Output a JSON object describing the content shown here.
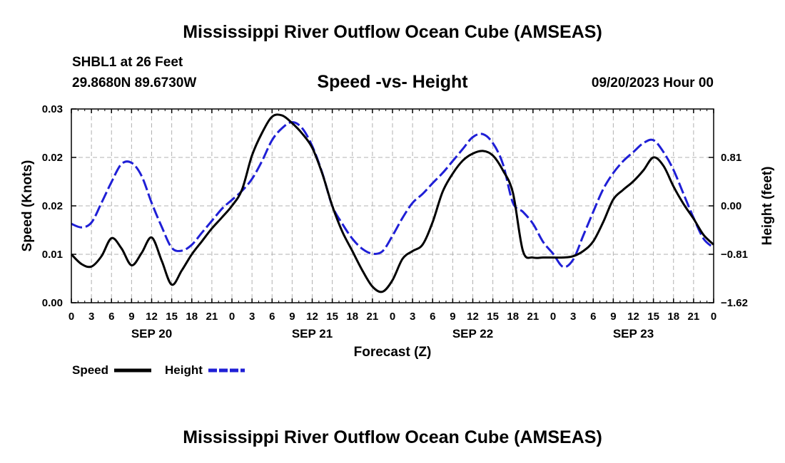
{
  "header": {
    "title": "Mississippi River Outflow Ocean Cube (AMSEAS)",
    "station": "SHBL1 at 26 Feet",
    "coordinates": "29.8680N  89.6730W",
    "subtitle": "Speed -vs- Height",
    "datetime": "09/20/2023 Hour 00"
  },
  "footer": {
    "title": "Mississippi River Outflow Ocean Cube (AMSEAS)"
  },
  "chart_data": {
    "type": "line",
    "xlabel": "Forecast (Z)",
    "ylabel_left": "Speed (Knots)",
    "ylabel_right": "Height (feet)",
    "x_range_hours": [
      0,
      96
    ],
    "x_tick_labels": [
      "0",
      "3",
      "6",
      "9",
      "12",
      "15",
      "18",
      "21",
      "0",
      "3",
      "6",
      "9",
      "12",
      "15",
      "18",
      "21",
      "0",
      "3",
      "6",
      "9",
      "12",
      "15",
      "18",
      "21",
      "0",
      "3",
      "6",
      "9",
      "12",
      "15",
      "18",
      "21",
      "0"
    ],
    "day_labels": [
      {
        "hour": 12,
        "label": "SEP 20"
      },
      {
        "hour": 36,
        "label": "SEP 21"
      },
      {
        "hour": 60,
        "label": "SEP 22"
      },
      {
        "hour": 84,
        "label": "SEP 23"
      }
    ],
    "y_left": {
      "range": [
        0,
        0.03
      ],
      "ticks": [
        0,
        0.0075,
        0.015,
        0.0225,
        0.03
      ],
      "tick_labels": [
        "0.00",
        "0.01",
        "0.02",
        "0.02",
        "0.03"
      ]
    },
    "y_right": {
      "range": [
        -1.62,
        1.62
      ],
      "ticks": [
        -1.62,
        -0.81,
        0.0,
        0.81
      ],
      "tick_labels": [
        "−1.62",
        "−0.81",
        "0.00",
        "0.81"
      ]
    },
    "grid": true,
    "legend_position": "bottom-left",
    "series": [
      {
        "name": "Speed",
        "axis": "left",
        "color": "#000000",
        "style": "solid",
        "x": [
          0,
          1.5,
          3,
          4.5,
          6,
          7.5,
          9,
          10.5,
          12,
          13.5,
          15,
          16.5,
          18,
          19.5,
          21,
          22.5,
          24,
          25.5,
          27,
          28.5,
          30,
          31.5,
          33,
          34.5,
          36,
          37.5,
          39,
          40.5,
          42,
          43.5,
          45,
          46.5,
          48,
          49.5,
          51,
          52.5,
          54,
          55.5,
          57,
          58.5,
          60,
          61.5,
          63,
          64.5,
          66,
          67.5,
          69,
          70.5,
          72,
          73.5,
          75,
          76.5,
          78,
          79.5,
          81,
          82.5,
          84,
          85.5,
          87,
          88.5,
          90,
          91.5,
          93,
          94.5,
          96
        ],
        "values": [
          0.0075,
          0.006,
          0.0056,
          0.0072,
          0.01,
          0.0084,
          0.0058,
          0.0077,
          0.0101,
          0.0065,
          0.0028,
          0.005,
          0.0075,
          0.0095,
          0.0115,
          0.0132,
          0.015,
          0.0175,
          0.0228,
          0.0263,
          0.0288,
          0.029,
          0.0278,
          0.0262,
          0.024,
          0.02,
          0.015,
          0.011,
          0.008,
          0.005,
          0.0025,
          0.0017,
          0.0035,
          0.0068,
          0.008,
          0.009,
          0.0125,
          0.0172,
          0.02,
          0.022,
          0.0231,
          0.0235,
          0.0228,
          0.0205,
          0.017,
          0.008,
          0.007,
          0.007,
          0.007,
          0.007,
          0.0072,
          0.008,
          0.0095,
          0.0125,
          0.016,
          0.0175,
          0.0188,
          0.0205,
          0.0225,
          0.0212,
          0.018,
          0.0153,
          0.013,
          0.0105,
          0.009
        ]
      },
      {
        "name": "Height",
        "axis": "right",
        "color": "#1f1fd6",
        "style": "dashed",
        "x": [
          0,
          1.5,
          3,
          4.5,
          6,
          7.5,
          9,
          10.5,
          12,
          13.5,
          15,
          16.5,
          18,
          19.5,
          21,
          22.5,
          24,
          25.5,
          27,
          28.5,
          30,
          31.5,
          33,
          34.5,
          36,
          37.5,
          39,
          40.5,
          42,
          43.5,
          45,
          46.5,
          48,
          49.5,
          51,
          52.5,
          54,
          55.5,
          57,
          58.5,
          60,
          61.5,
          63,
          64.5,
          66,
          67.5,
          69,
          70.5,
          72,
          73.5,
          75,
          76.5,
          78,
          79.5,
          81,
          82.5,
          84,
          85.5,
          87,
          88.5,
          90,
          91.5,
          93,
          94.5,
          96
        ],
        "values": [
          -0.3,
          -0.36,
          -0.28,
          0.05,
          0.4,
          0.7,
          0.72,
          0.5,
          0.05,
          -0.35,
          -0.7,
          -0.75,
          -0.65,
          -0.45,
          -0.25,
          -0.05,
          0.1,
          0.25,
          0.45,
          0.75,
          1.1,
          1.3,
          1.4,
          1.3,
          1.0,
          0.55,
          0.0,
          -0.3,
          -0.55,
          -0.72,
          -0.8,
          -0.76,
          -0.5,
          -0.2,
          0.05,
          0.2,
          0.38,
          0.55,
          0.75,
          0.95,
          1.15,
          1.2,
          1.05,
          0.7,
          0.05,
          -0.1,
          -0.3,
          -0.6,
          -0.8,
          -1.02,
          -0.9,
          -0.5,
          -0.1,
          0.28,
          0.55,
          0.75,
          0.9,
          1.05,
          1.1,
          0.9,
          0.6,
          0.2,
          -0.2,
          -0.55,
          -0.7
        ]
      }
    ]
  }
}
